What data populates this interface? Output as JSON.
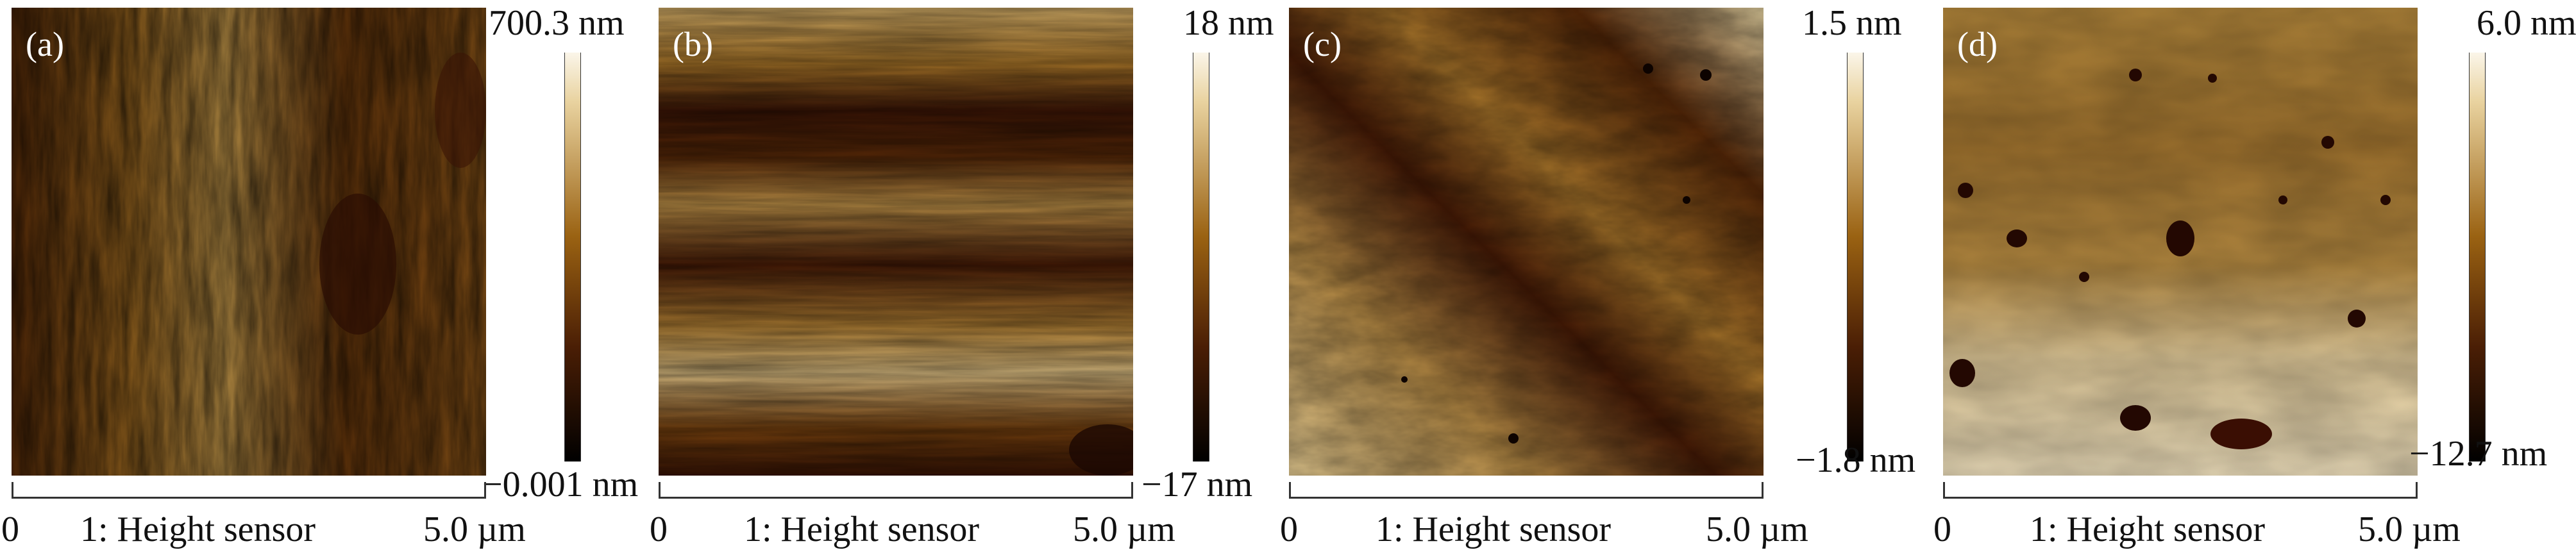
{
  "panels": [
    {
      "label": "(a)",
      "max": "700.3 nm",
      "min": "−0.001 nm",
      "x_start": "0",
      "x_title": "1: Height sensor",
      "x_end": "5.0 µm"
    },
    {
      "label": "(b)",
      "max": "18 nm",
      "min": "−17 nm",
      "x_start": "0",
      "x_title": "1: Height sensor",
      "x_end": "5.0 µm"
    },
    {
      "label": "(c)",
      "max": "1.5 nm",
      "min": "−1.8 nm",
      "x_start": "0",
      "x_title": "1: Height sensor",
      "x_end": "5.0 µm"
    },
    {
      "label": "(d)",
      "max": "6.0 nm",
      "min": "−12.7 nm",
      "x_start": "0",
      "x_title": "1: Height sensor",
      "x_end": "5.0 µm"
    }
  ],
  "colors": {
    "afm_dark": "#2b0d03",
    "afm_mid": "#9a6212",
    "afm_light": "#e9d3a0",
    "afm_white": "#fbf6ea"
  }
}
